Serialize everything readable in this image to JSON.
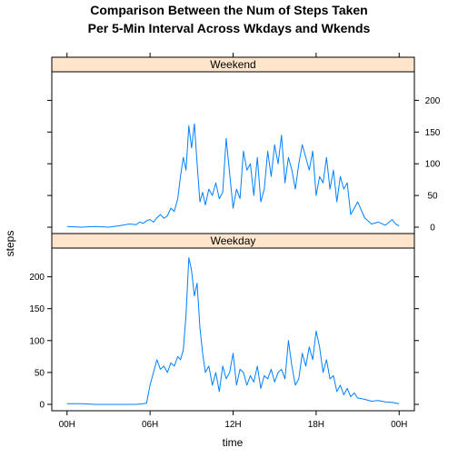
{
  "chart_data": {
    "type": "line",
    "title_line1": "Comparison Between the Num of Steps Taken",
    "title_line2": "Per 5-Min Interval Across Wkdays and Wkends",
    "xlabel": "time",
    "ylabel": "steps",
    "x_ticks": [
      {
        "hour": 0,
        "label": "00H"
      },
      {
        "hour": 6,
        "label": "06H"
      },
      {
        "hour": 12,
        "label": "12H"
      },
      {
        "hour": 18,
        "label": "18H"
      },
      {
        "hour": 24,
        "label": "00H"
      }
    ],
    "xlim": [
      -1.1,
      25.1
    ],
    "ylim": [
      -10,
      245
    ],
    "y_ticks": [
      0,
      50,
      100,
      150,
      200
    ],
    "grid": false,
    "line_color": "#0080ff",
    "strip_color": "#ffe5cc",
    "panels": [
      {
        "name": "Weekend",
        "label": "Weekend",
        "y_tick_side": "right",
        "x": [
          0,
          1,
          2,
          3,
          4,
          4.5,
          5,
          5.25,
          5.5,
          5.75,
          6,
          6.25,
          6.5,
          6.75,
          7,
          7.25,
          7.5,
          7.75,
          8,
          8.2,
          8.4,
          8.6,
          8.8,
          9,
          9.2,
          9.4,
          9.6,
          9.8,
          10,
          10.25,
          10.5,
          10.75,
          11,
          11.25,
          11.5,
          11.75,
          12,
          12.25,
          12.5,
          12.75,
          13,
          13.25,
          13.5,
          13.75,
          14,
          14.25,
          14.5,
          14.75,
          15,
          15.25,
          15.5,
          15.75,
          16,
          16.25,
          16.5,
          16.75,
          17,
          17.25,
          17.5,
          17.75,
          18,
          18.25,
          18.5,
          18.75,
          19,
          19.25,
          19.5,
          19.75,
          20,
          20.25,
          20.5,
          20.75,
          21,
          21.5,
          22,
          22.5,
          23,
          23.5,
          23.75,
          24
        ],
        "y": [
          1,
          0,
          1,
          0,
          3,
          5,
          4,
          8,
          6,
          10,
          12,
          8,
          15,
          20,
          14,
          18,
          30,
          25,
          45,
          80,
          110,
          90,
          160,
          125,
          163,
          100,
          40,
          55,
          35,
          60,
          50,
          70,
          45,
          55,
          140,
          85,
          30,
          60,
          45,
          120,
          90,
          100,
          50,
          110,
          40,
          60,
          120,
          80,
          130,
          100,
          145,
          70,
          110,
          90,
          60,
          100,
          130,
          110,
          90,
          120,
          50,
          80,
          70,
          110,
          60,
          90,
          40,
          80,
          60,
          70,
          20,
          30,
          40,
          15,
          5,
          8,
          3,
          12,
          5,
          2
        ]
      },
      {
        "name": "Weekday",
        "label": "Weekday",
        "y_tick_side": "left",
        "x": [
          0,
          1,
          2,
          3,
          4,
          5,
          5.5,
          5.75,
          6,
          6.25,
          6.5,
          6.75,
          7,
          7.25,
          7.5,
          7.75,
          8,
          8.2,
          8.4,
          8.6,
          8.8,
          9,
          9.2,
          9.4,
          9.6,
          9.8,
          10,
          10.25,
          10.5,
          10.75,
          11,
          11.25,
          11.5,
          11.75,
          12,
          12.25,
          12.5,
          12.75,
          13,
          13.25,
          13.5,
          13.75,
          14,
          14.25,
          14.5,
          14.75,
          15,
          15.25,
          15.5,
          15.75,
          16,
          16.25,
          16.5,
          16.75,
          17,
          17.25,
          17.5,
          17.75,
          18,
          18.25,
          18.5,
          18.75,
          19,
          19.25,
          19.5,
          19.75,
          20,
          20.25,
          20.5,
          20.75,
          21,
          21.5,
          22,
          22.5,
          23,
          23.5,
          24
        ],
        "y": [
          1,
          1,
          0,
          0,
          0,
          0,
          1,
          2,
          30,
          50,
          70,
          55,
          60,
          50,
          65,
          60,
          75,
          70,
          85,
          140,
          230,
          210,
          170,
          190,
          120,
          80,
          50,
          60,
          30,
          50,
          20,
          60,
          40,
          50,
          80,
          30,
          55,
          50,
          30,
          45,
          35,
          60,
          25,
          45,
          40,
          55,
          35,
          50,
          55,
          40,
          100,
          60,
          30,
          40,
          80,
          60,
          90,
          70,
          115,
          90,
          50,
          70,
          40,
          45,
          20,
          30,
          15,
          25,
          12,
          18,
          10,
          8,
          5,
          6,
          4,
          3,
          1
        ]
      }
    ]
  }
}
